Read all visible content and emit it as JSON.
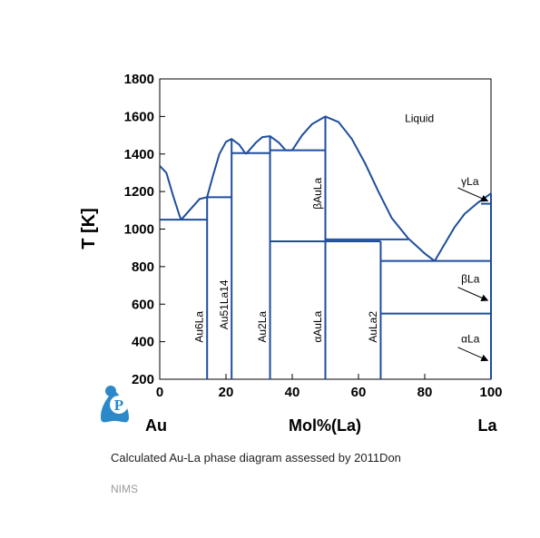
{
  "chart_data": {
    "type": "line",
    "ylabel": "T [K]",
    "xlabel": "Mol%(La)",
    "x_left_label": "Au",
    "x_right_label": "La",
    "xlim": [
      0,
      100
    ],
    "ylim": [
      200,
      1800
    ],
    "xticks": [
      0,
      20,
      40,
      60,
      80,
      100
    ],
    "yticks": [
      200,
      400,
      600,
      800,
      1000,
      1200,
      1400,
      1600,
      1800
    ],
    "grid": false,
    "line_color": "#1f4e9c",
    "curves": [
      {
        "points": [
          [
            0,
            1337
          ],
          [
            2,
            1300
          ],
          [
            4,
            1180
          ],
          [
            6,
            1070
          ],
          [
            6.5,
            1050
          ]
        ]
      },
      {
        "points": [
          [
            6.5,
            1050
          ],
          [
            9,
            1100
          ],
          [
            12,
            1160
          ],
          [
            14.3,
            1170
          ]
        ]
      },
      {
        "points": [
          [
            14.3,
            1170
          ],
          [
            16,
            1280
          ],
          [
            18,
            1400
          ],
          [
            20,
            1465
          ],
          [
            21.7,
            1480
          ],
          [
            24,
            1450
          ],
          [
            26,
            1400
          ]
        ]
      },
      {
        "points": [
          [
            26,
            1400
          ],
          [
            29,
            1460
          ],
          [
            31,
            1490
          ],
          [
            33.3,
            1495
          ],
          [
            36,
            1460
          ],
          [
            38,
            1420
          ],
          [
            40,
            1420
          ]
        ]
      },
      {
        "points": [
          [
            40,
            1420
          ],
          [
            43,
            1500
          ],
          [
            46,
            1560
          ],
          [
            50,
            1600
          ],
          [
            54,
            1570
          ],
          [
            58,
            1480
          ],
          [
            62,
            1350
          ],
          [
            66,
            1200
          ],
          [
            70,
            1060
          ],
          [
            75,
            950
          ]
        ]
      },
      {
        "points": [
          [
            75,
            950
          ],
          [
            80,
            870
          ],
          [
            83,
            830
          ]
        ]
      },
      {
        "points": [
          [
            83,
            830
          ],
          [
            86,
            920
          ],
          [
            89,
            1010
          ],
          [
            92,
            1080
          ],
          [
            96,
            1140
          ],
          [
            100,
            1190
          ]
        ]
      }
    ],
    "horizontal_lines": [
      {
        "y": 1050,
        "x": [
          0,
          14.3
        ]
      },
      {
        "y": 1170,
        "x": [
          14.3,
          21.7
        ]
      },
      {
        "y": 1405,
        "x": [
          21.7,
          33.3
        ]
      },
      {
        "y": 1420,
        "x": [
          33.3,
          50
        ]
      },
      {
        "y": 935,
        "x": [
          33.3,
          66.7
        ]
      },
      {
        "y": 945,
        "x": [
          50,
          75
        ]
      },
      {
        "y": 830,
        "x": [
          66.7,
          100
        ]
      },
      {
        "y": 550,
        "x": [
          66.7,
          100
        ]
      },
      {
        "y": 1135,
        "x": [
          97,
          100
        ]
      }
    ],
    "vertical_lines": [
      {
        "x": 14.3,
        "y": [
          200,
          1170
        ]
      },
      {
        "x": 21.7,
        "y": [
          200,
          1480
        ]
      },
      {
        "x": 33.3,
        "y": [
          200,
          1495
        ]
      },
      {
        "x": 50,
        "y": [
          200,
          1600
        ]
      },
      {
        "x": 66.7,
        "y": [
          200,
          935
        ]
      }
    ],
    "phase_labels": [
      {
        "text": "Liquid",
        "x": 74,
        "y": 1570,
        "rotate": false
      },
      {
        "text": "γLa",
        "x": 91,
        "y": 1235,
        "rotate": false
      },
      {
        "text": "βLa",
        "x": 91,
        "y": 715,
        "rotate": false
      },
      {
        "text": "αLa",
        "x": 91,
        "y": 395,
        "rotate": false
      },
      {
        "text": "Au6La",
        "x": 13,
        "y": 395,
        "rotate": true
      },
      {
        "text": "Au51La14",
        "x": 20.5,
        "y": 465,
        "rotate": true
      },
      {
        "text": "Au2La",
        "x": 32,
        "y": 395,
        "rotate": true
      },
      {
        "text": "αAuLa",
        "x": 48.8,
        "y": 395,
        "rotate": true
      },
      {
        "text": "βAuLa",
        "x": 48.8,
        "y": 1105,
        "rotate": true
      },
      {
        "text": "AuLa2",
        "x": 65.5,
        "y": 395,
        "rotate": true
      }
    ],
    "arrows": [
      {
        "from": [
          90,
          1220
        ],
        "to": [
          99,
          1150
        ]
      },
      {
        "from": [
          90,
          690
        ],
        "to": [
          99,
          620
        ]
      },
      {
        "from": [
          90,
          370
        ],
        "to": [
          99,
          300
        ]
      }
    ]
  },
  "caption": "Calculated Au-La phase diagram assessed by 2011Don",
  "footer": "NIMS",
  "logo_letter": "P"
}
